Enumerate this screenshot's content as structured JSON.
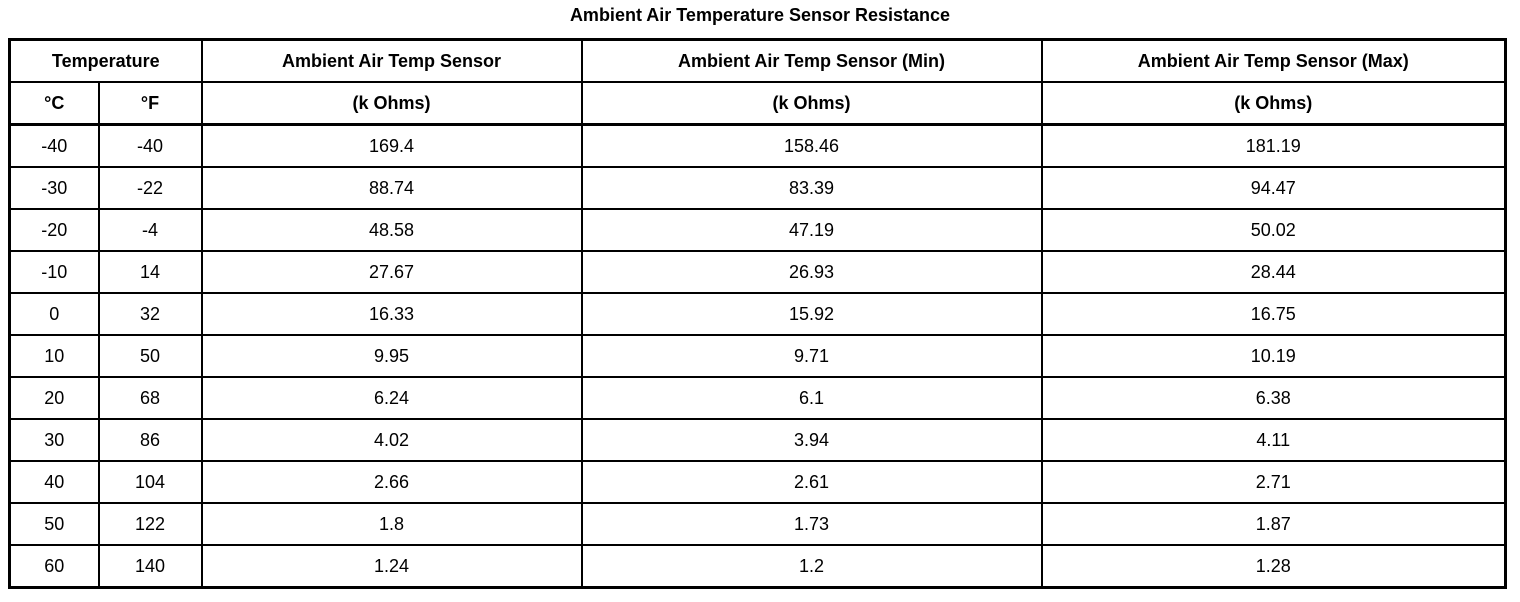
{
  "page": {
    "title": "Ambient Air Temperature Sensor Resistance"
  },
  "table": {
    "header": {
      "temperature": "Temperature",
      "sensor": "Ambient Air Temp Sensor",
      "sensor_min": "Ambient Air Temp Sensor (Min)",
      "sensor_max": "Ambient Air Temp Sensor (Max)",
      "celsius": "°C",
      "fahrenheit": "°F",
      "unit": "(k Ohms)"
    },
    "rows": [
      {
        "c": "-40",
        "f": "-40",
        "sensor": "169.4",
        "min": "158.46",
        "max": "181.19"
      },
      {
        "c": "-30",
        "f": "-22",
        "sensor": "88.74",
        "min": "83.39",
        "max": "94.47"
      },
      {
        "c": "-20",
        "f": "-4",
        "sensor": "48.58",
        "min": "47.19",
        "max": "50.02"
      },
      {
        "c": "-10",
        "f": "14",
        "sensor": "27.67",
        "min": "26.93",
        "max": "28.44"
      },
      {
        "c": "0",
        "f": "32",
        "sensor": "16.33",
        "min": "15.92",
        "max": "16.75"
      },
      {
        "c": "10",
        "f": "50",
        "sensor": "9.95",
        "min": "9.71",
        "max": "10.19"
      },
      {
        "c": "20",
        "f": "68",
        "sensor": "6.24",
        "min": "6.1",
        "max": "6.38"
      },
      {
        "c": "30",
        "f": "86",
        "sensor": "4.02",
        "min": "3.94",
        "max": "4.11"
      },
      {
        "c": "40",
        "f": "104",
        "sensor": "2.66",
        "min": "2.61",
        "max": "2.71"
      },
      {
        "c": "50",
        "f": "122",
        "sensor": "1.8",
        "min": "1.73",
        "max": "1.87"
      },
      {
        "c": "60",
        "f": "140",
        "sensor": "1.24",
        "min": "1.2",
        "max": "1.28"
      }
    ]
  },
  "chart_data": {
    "type": "table",
    "title": "Ambient Air Temperature Sensor Resistance",
    "columns": [
      "Temperature (°C)",
      "Temperature (°F)",
      "Ambient Air Temp Sensor (k Ohms)",
      "Ambient Air Temp Sensor (Min) (k Ohms)",
      "Ambient Air Temp Sensor (Max) (k Ohms)"
    ],
    "rows": [
      [
        -40,
        -40,
        169.4,
        158.46,
        181.19
      ],
      [
        -30,
        -22,
        88.74,
        83.39,
        94.47
      ],
      [
        -20,
        -4,
        48.58,
        47.19,
        50.02
      ],
      [
        -10,
        14,
        27.67,
        26.93,
        28.44
      ],
      [
        0,
        32,
        16.33,
        15.92,
        16.75
      ],
      [
        10,
        50,
        9.95,
        9.71,
        10.19
      ],
      [
        20,
        68,
        6.24,
        6.1,
        6.38
      ],
      [
        30,
        86,
        4.02,
        3.94,
        4.11
      ],
      [
        40,
        104,
        2.66,
        2.61,
        2.71
      ],
      [
        50,
        122,
        1.8,
        1.73,
        1.87
      ],
      [
        60,
        140,
        1.24,
        1.2,
        1.28
      ]
    ]
  }
}
